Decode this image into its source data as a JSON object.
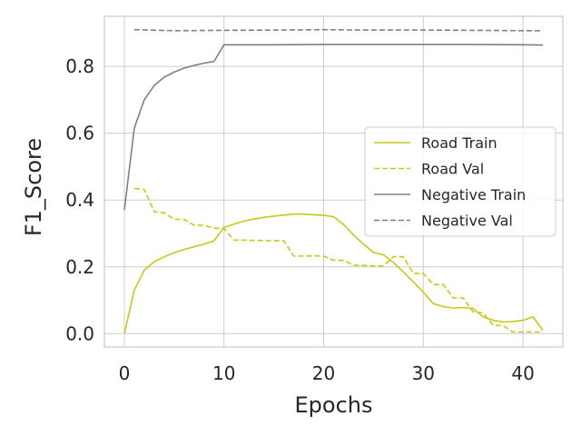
{
  "chart_data": {
    "type": "line",
    "xlabel": "Epochs",
    "ylabel": "F1_Score",
    "xlim": [
      -2,
      44
    ],
    "ylim": [
      -0.04,
      0.95
    ],
    "xticks": [
      0,
      10,
      20,
      30,
      40
    ],
    "xtick_labels": [
      "0",
      "10",
      "20",
      "30",
      "40"
    ],
    "yticks": [
      0.0,
      0.2,
      0.4,
      0.6,
      0.8
    ],
    "ytick_labels": [
      "0.0",
      "0.2",
      "0.4",
      "0.6",
      "0.8"
    ],
    "grid": true,
    "legend_position": "center-right",
    "series": [
      {
        "name": "Road Train",
        "color": "#c8c81a",
        "dash": "solid",
        "x": [
          0,
          1,
          2,
          3,
          4,
          5,
          6,
          7,
          8,
          9,
          10,
          11,
          12,
          13,
          14,
          15,
          16,
          17,
          18,
          19,
          20,
          21,
          22,
          23,
          24,
          25,
          26,
          27,
          28,
          29,
          30,
          31,
          32,
          33,
          34,
          35,
          36,
          37,
          38,
          39,
          40,
          41,
          42
        ],
        "values": [
          0.0,
          0.13,
          0.19,
          0.215,
          0.23,
          0.242,
          0.252,
          0.26,
          0.268,
          0.278,
          0.318,
          0.328,
          0.337,
          0.343,
          0.348,
          0.352,
          0.355,
          0.358,
          0.358,
          0.356,
          0.354,
          0.35,
          0.327,
          0.295,
          0.268,
          0.243,
          0.236,
          0.213,
          0.185,
          0.155,
          0.124,
          0.09,
          0.081,
          0.077,
          0.078,
          0.075,
          0.05,
          0.04,
          0.035,
          0.036,
          0.04,
          0.05,
          0.01
        ]
      },
      {
        "name": "Road Val",
        "color": "#c8c81a",
        "dash": "dashed",
        "x": [
          1,
          2,
          3,
          4,
          5,
          6,
          7,
          8,
          9,
          10,
          11,
          12,
          13,
          14,
          15,
          16,
          17,
          18,
          19,
          20,
          21,
          22,
          23,
          24,
          25,
          26,
          27,
          28,
          29,
          30,
          31,
          32,
          33,
          34,
          35,
          36,
          37,
          38,
          39,
          40,
          41,
          42
        ],
        "values": [
          0.435,
          0.432,
          0.365,
          0.362,
          0.342,
          0.342,
          0.325,
          0.324,
          0.316,
          0.315,
          0.28,
          0.28,
          0.279,
          0.279,
          0.278,
          0.278,
          0.232,
          0.232,
          0.233,
          0.232,
          0.22,
          0.219,
          0.205,
          0.204,
          0.203,
          0.203,
          0.23,
          0.23,
          0.18,
          0.18,
          0.147,
          0.147,
          0.107,
          0.107,
          0.065,
          0.062,
          0.025,
          0.024,
          0.005,
          0.005,
          0.005,
          0.005
        ]
      },
      {
        "name": "Negative Train",
        "color": "#808080",
        "dash": "solid",
        "x": [
          0,
          1,
          2,
          3,
          4,
          5,
          6,
          7,
          8,
          9,
          10,
          15,
          20,
          25,
          30,
          35,
          40,
          42
        ],
        "values": [
          0.37,
          0.615,
          0.7,
          0.743,
          0.768,
          0.783,
          0.795,
          0.803,
          0.81,
          0.815,
          0.865,
          0.865,
          0.866,
          0.866,
          0.866,
          0.866,
          0.865,
          0.864
        ]
      },
      {
        "name": "Negative Val",
        "color": "#808080",
        "dash": "dashed",
        "x": [
          1,
          5,
          10,
          15,
          20,
          25,
          30,
          35,
          40,
          42
        ],
        "values": [
          0.91,
          0.907,
          0.908,
          0.909,
          0.91,
          0.909,
          0.909,
          0.908,
          0.907,
          0.907
        ]
      }
    ]
  }
}
